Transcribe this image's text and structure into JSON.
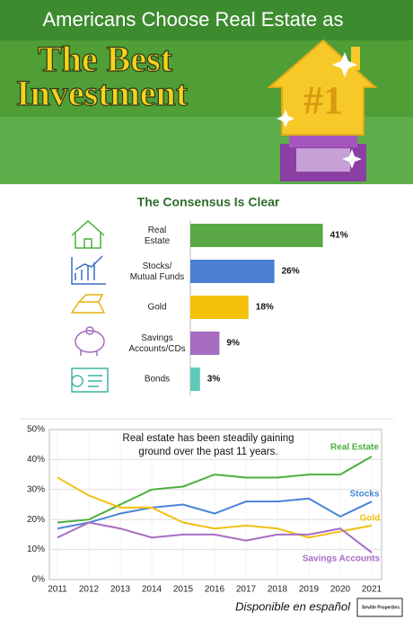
{
  "header": {
    "kicker": "Americans Choose Real Estate as",
    "title": [
      "The Best",
      "Investment"
    ],
    "badge": "#1"
  },
  "chart_data": [
    {
      "type": "bar",
      "title": "The Consensus Is Clear",
      "categories": [
        "Real\nEstate",
        "Stocks/\nMutual Funds",
        "Gold",
        "Savings\nAccounts/CDs",
        "Bonds"
      ],
      "values": [
        41,
        26,
        18,
        9,
        3
      ],
      "value_labels": [
        "41%",
        "26%",
        "18%",
        "9%",
        "3%"
      ],
      "colors": [
        "#5aa845",
        "#4a7fd4",
        "#f4c20d",
        "#a56cc1",
        "#5fc9b8"
      ]
    },
    {
      "type": "line",
      "annotation": [
        "Real estate has been steadily gaining",
        "ground over the past 11 years."
      ],
      "categories": [
        "2011",
        "2012",
        "2013",
        "2014",
        "2015",
        "2016",
        "2017",
        "2018",
        "2019",
        "2020",
        "2021"
      ],
      "ylim": [
        0,
        50
      ],
      "yticks": [
        {
          "value": 0,
          "label": "0%"
        },
        {
          "value": 10,
          "label": "10%"
        },
        {
          "value": 20,
          "label": "20%"
        },
        {
          "value": 30,
          "label": "30%"
        },
        {
          "value": 40,
          "label": "40%"
        },
        {
          "value": 50,
          "label": "50%"
        }
      ],
      "grid": true,
      "series": [
        {
          "name": "Real Estate",
          "color": "#4caf3e",
          "values": [
            19,
            20,
            25,
            30,
            31,
            35,
            34,
            34,
            35,
            35,
            41
          ]
        },
        {
          "name": "Stocks",
          "color": "#4a86d6",
          "values": [
            17,
            19,
            22,
            24,
            25,
            22,
            26,
            26,
            27,
            21,
            26
          ]
        },
        {
          "name": "Gold",
          "color": "#f2c10f",
          "values": [
            34,
            28,
            24,
            24,
            19,
            17,
            18,
            17,
            14,
            16,
            18
          ]
        },
        {
          "name": "Savings Accounts",
          "color": "#a86cc4",
          "values": [
            14,
            19,
            17,
            14,
            15,
            15,
            13,
            15,
            15,
            17,
            9
          ]
        }
      ]
    }
  ],
  "footer": {
    "note": "Disponible en español",
    "logo": "Seville Properties"
  }
}
